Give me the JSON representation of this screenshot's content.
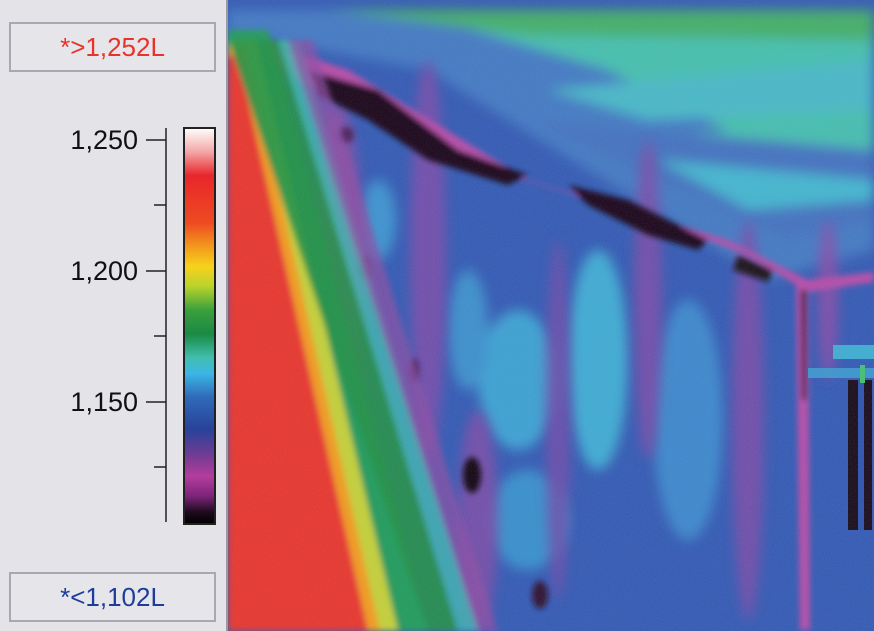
{
  "legend": {
    "max_label": "*>1,252L",
    "min_label": "*<1,102L",
    "ticks": [
      {
        "label": "1,250",
        "value": 1250
      },
      {
        "label": "1,200",
        "value": 1200
      },
      {
        "label": "1,150",
        "value": 1150
      }
    ],
    "scale_max": 1252,
    "scale_min": 1102,
    "palette": [
      "#ffffff",
      "#f3a7a7",
      "#e8262a",
      "#f06a1e",
      "#f7c21d",
      "#c6d72e",
      "#3fa03a",
      "#1c8f43",
      "#3dbdb8",
      "#3cb6e6",
      "#2f6ab8",
      "#26409a",
      "#6a3c94",
      "#b43c9c",
      "#8c2a86",
      "#2a0a2a",
      "#000000"
    ]
  },
  "colors": {
    "max_text": "#e8332b",
    "min_text": "#1e3d9a",
    "panel_bg": "#e3e3e8"
  }
}
